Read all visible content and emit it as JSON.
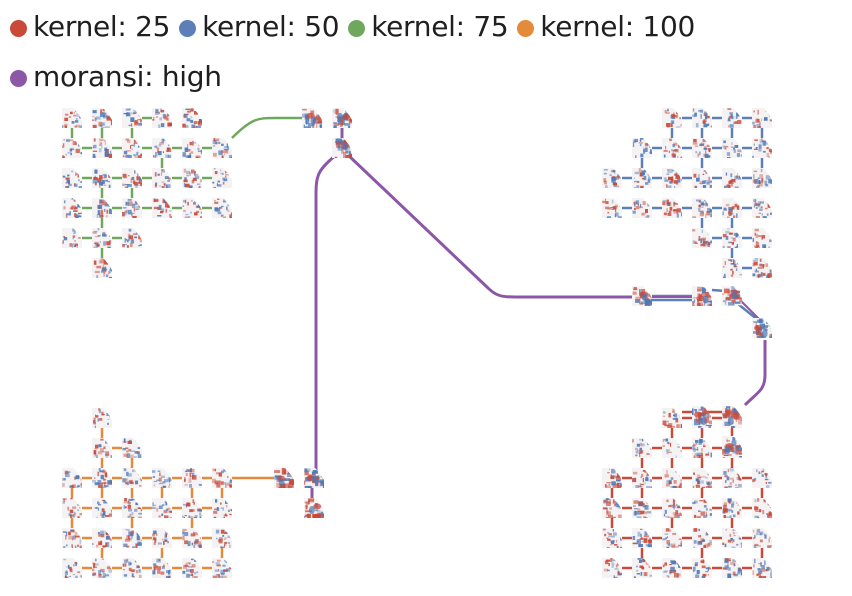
{
  "legend": {
    "items": [
      {
        "label": "kernel: 25",
        "color": "#c94a38"
      },
      {
        "label": "kernel: 50",
        "color": "#5b7fb6"
      },
      {
        "label": "kernel: 75",
        "color": "#6fa85c"
      },
      {
        "label": "kernel: 100",
        "color": "#e38a3b"
      },
      {
        "label": "moransi: high",
        "color": "#8c57a6"
      }
    ]
  },
  "colors": {
    "kernel_25": "#c94a38",
    "kernel_50": "#5b7fb6",
    "kernel_75": "#6fa85c",
    "kernel_100": "#e38a3b",
    "moransi_high": "#8c57a6",
    "thumb_red": "#c84838",
    "thumb_blue": "#4a79b8",
    "thumb_bg": "#f4f2f2"
  },
  "icons": {
    "thumbnail": "spatial-heatmap-thumbnail-icon"
  }
}
